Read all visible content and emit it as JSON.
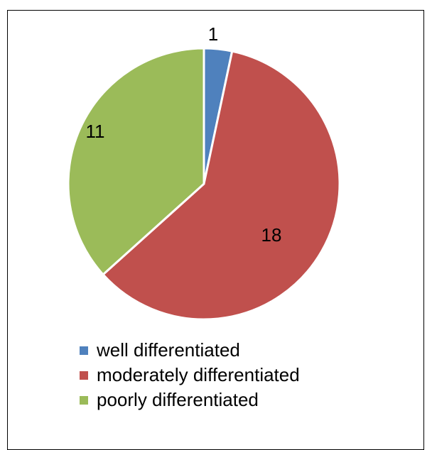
{
  "chart_data": {
    "type": "pie",
    "title": "",
    "categories": [
      "well differentiated",
      "moderately differentiated",
      "poorly differentiated"
    ],
    "values": [
      1,
      18,
      11
    ],
    "colors": [
      "#4F81BD",
      "#C0504D",
      "#9BBB59"
    ],
    "legend_position": "bottom-left",
    "labels": [
      {
        "text": "1"
      },
      {
        "text": "18"
      },
      {
        "text": "11"
      }
    ]
  }
}
